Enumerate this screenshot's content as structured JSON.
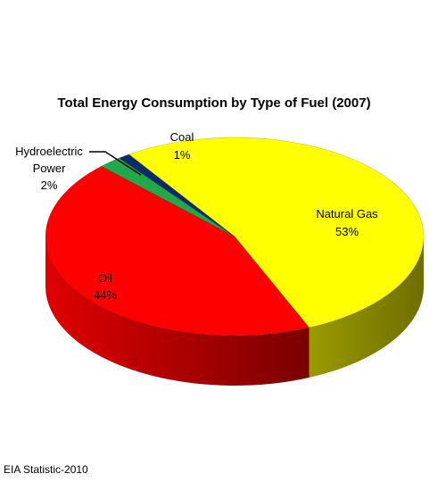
{
  "chart_data": {
    "type": "pie",
    "title": "Total Energy Consumption by Type of Fuel (2007)",
    "slices": [
      {
        "name": "Natural Gas",
        "value": 53,
        "value_label": "53%",
        "color": "#ffff00",
        "side_color": "#8a8a00"
      },
      {
        "name": "Oil",
        "value": 44,
        "value_label": "44%",
        "color": "#ff0000",
        "side_color": "#8b0000"
      },
      {
        "name_lines": [
          "Hydroelectric",
          "Power"
        ],
        "value": 2,
        "value_label": "2%",
        "color": "#22a84a",
        "side_color": "#0f5a22"
      },
      {
        "name": "Coal",
        "value": 1,
        "value_label": "1%",
        "color": "#0b2a6b",
        "side_color": "#061538"
      }
    ],
    "style": "3d-tilted-pie"
  },
  "footer": {
    "source": "EIA Statistic-2010"
  }
}
